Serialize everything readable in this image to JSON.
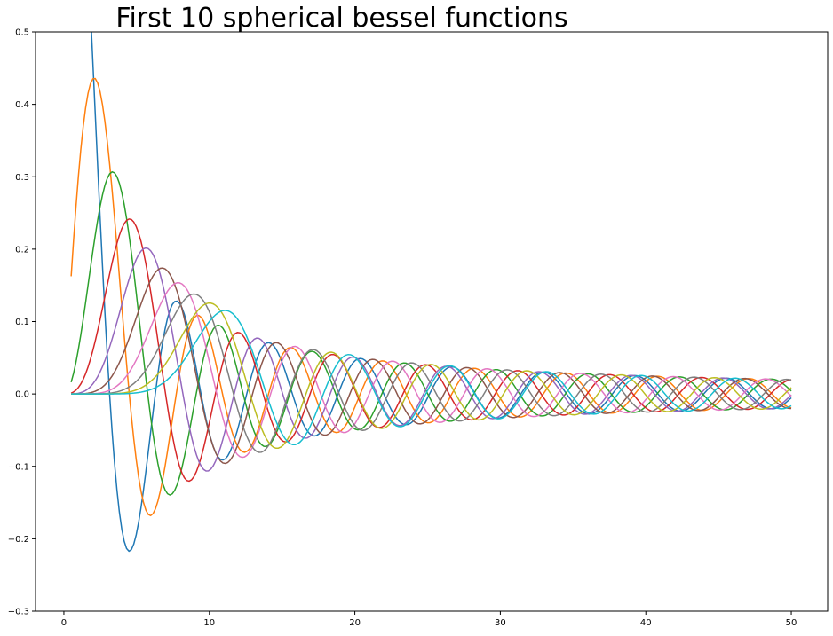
{
  "chart_data": {
    "type": "line",
    "title": "First 10 spherical bessel functions",
    "xlabel": "",
    "ylabel": "",
    "xlim": [
      -1.95,
      52.5
    ],
    "ylim": [
      -0.3,
      0.5
    ],
    "x_range": [
      0.5,
      50
    ],
    "x_ticks": [
      0,
      10,
      20,
      30,
      40,
      50
    ],
    "y_ticks": [
      -0.3,
      -0.2,
      -0.1,
      0.0,
      0.1,
      0.2,
      0.3,
      0.4,
      0.5
    ],
    "x_tick_labels": [
      "0",
      "10",
      "20",
      "30",
      "40",
      "50"
    ],
    "y_tick_labels": [
      "−0.3",
      "−0.2",
      "−0.1",
      "0.0",
      "0.1",
      "0.2",
      "0.3",
      "0.4",
      "0.5"
    ],
    "grid": false,
    "legend": "none",
    "series": [
      {
        "order": 0,
        "function": "spherical_jn",
        "color": "#1f77b4"
      },
      {
        "order": 1,
        "function": "spherical_jn",
        "color": "#ff7f0e"
      },
      {
        "order": 2,
        "function": "spherical_jn",
        "color": "#2ca02c"
      },
      {
        "order": 3,
        "function": "spherical_jn",
        "color": "#d62728"
      },
      {
        "order": 4,
        "function": "spherical_jn",
        "color": "#9467bd"
      },
      {
        "order": 5,
        "function": "spherical_jn",
        "color": "#8c564b"
      },
      {
        "order": 6,
        "function": "spherical_jn",
        "color": "#e377c2"
      },
      {
        "order": 7,
        "function": "spherical_jn",
        "color": "#7f7f7f"
      },
      {
        "order": 8,
        "function": "spherical_jn",
        "color": "#bcbd22"
      },
      {
        "order": 9,
        "function": "spherical_jn",
        "color": "#17becf"
      }
    ]
  }
}
